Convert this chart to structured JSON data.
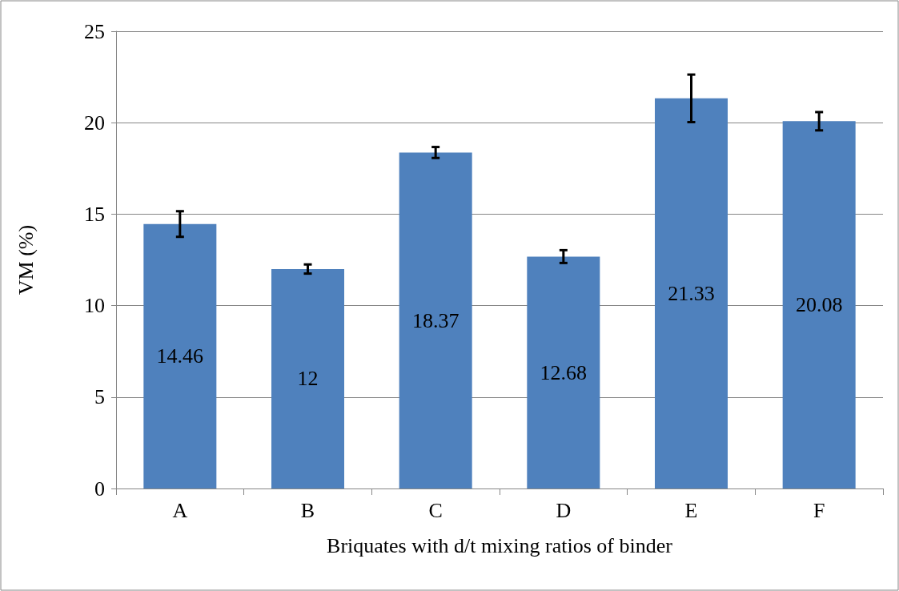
{
  "chart_data": {
    "type": "bar",
    "xlabel": "Briquates with d/t mixing ratios of binder",
    "ylabel": "VM (%)",
    "categories": [
      "A",
      "B",
      "C",
      "D",
      "E",
      "F"
    ],
    "values": [
      14.46,
      12,
      18.37,
      12.68,
      21.33,
      20.08
    ],
    "errors": [
      0.7,
      0.25,
      0.3,
      0.35,
      1.3,
      0.5
    ],
    "color": "#4f81bd",
    "ylim": [
      0,
      25
    ],
    "yticks": [
      0,
      5,
      10,
      15,
      20,
      25
    ],
    "grid": "y",
    "data_labels": true
  }
}
